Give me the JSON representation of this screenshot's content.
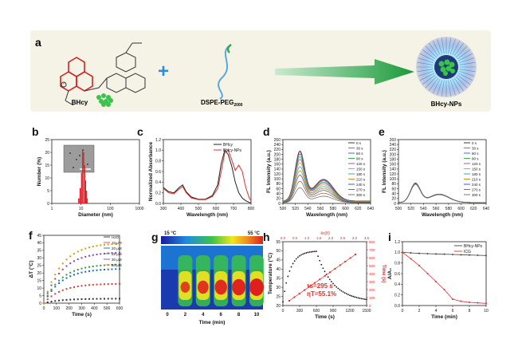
{
  "panel_a": {
    "letter": "a",
    "bhcy": "BHcy",
    "plus": "+",
    "dspe": "DSPE-PEG",
    "dspe_sub": "2000",
    "np": "BHcy-NPs"
  },
  "chart_data": [
    {
      "panel": "b",
      "type": "bar",
      "xlabel": "Diameter (nm)",
      "ylabel": "Number (%)",
      "x_scale": "log",
      "xlim": [
        1,
        1000
      ],
      "ylim": [
        0,
        25
      ],
      "yticks": [
        "0",
        "5",
        "10",
        "15",
        "20",
        "25"
      ],
      "xticks": [
        "1",
        "10",
        "100",
        "1000"
      ],
      "categories": [
        8,
        9,
        10,
        11,
        12,
        13,
        14,
        15,
        16
      ],
      "values": [
        2,
        6,
        12,
        21,
        20,
        15,
        9,
        5,
        2
      ],
      "color": "#d4141c"
    },
    {
      "panel": "c",
      "type": "line",
      "xlabel": "Wavelength (nm)",
      "ylabel": "Normalized Absorbance",
      "xlim": [
        300,
        800
      ],
      "ylim": [
        0,
        1.2
      ],
      "xticks": [
        "300",
        "400",
        "500",
        "600",
        "700",
        "800"
      ],
      "yticks": [
        "0.0",
        "0.2",
        "0.4",
        "0.6",
        "0.8",
        "1.0",
        "1.2"
      ],
      "x": [
        300,
        330,
        360,
        390,
        410,
        430,
        460,
        500,
        540,
        580,
        610,
        630,
        650,
        670,
        690,
        710,
        730,
        750,
        770,
        790,
        800
      ],
      "series": [
        {
          "name": "BHcy",
          "color": "#222222",
          "values": [
            0.3,
            0.22,
            0.2,
            0.3,
            0.35,
            0.22,
            0.12,
            0.08,
            0.08,
            0.15,
            0.35,
            0.75,
            1.0,
            0.92,
            0.7,
            0.4,
            0.2,
            0.1,
            0.05,
            0.02,
            0.01
          ]
        },
        {
          "name": "BHcy-NPs",
          "color": "#e0302a",
          "values": [
            0.28,
            0.2,
            0.18,
            0.27,
            0.32,
            0.2,
            0.1,
            0.07,
            0.07,
            0.13,
            0.28,
            0.6,
            0.95,
            1.0,
            0.82,
            0.62,
            0.72,
            0.6,
            0.3,
            0.1,
            0.05
          ]
        }
      ]
    },
    {
      "panel": "d",
      "type": "line",
      "xlabel": "Wavelength (nm)",
      "ylabel": "FL Intensity (a.u.)",
      "xlim": [
        500,
        640
      ],
      "ylim": [
        0,
        260
      ],
      "xticks": [
        "500",
        "520",
        "540",
        "560",
        "580",
        "600",
        "620",
        "640"
      ],
      "yticks": [
        "0",
        "20",
        "40",
        "60",
        "80",
        "100",
        "120",
        "140",
        "160",
        "180",
        "200",
        "220",
        "240",
        "260"
      ],
      "legend": [
        "0 s",
        "30 s",
        "60 s",
        "90 s",
        "120 s",
        "150 s",
        "180 s",
        "210 s",
        "240 s",
        "270 s",
        "300 s"
      ],
      "peaks": [
        200,
        195,
        188,
        178,
        168,
        155,
        140,
        125,
        108,
        85,
        60
      ],
      "colors": [
        "#222222",
        "#e53935",
        "#1e63d6",
        "#2e9e3c",
        "#8e44ad",
        "#c8a400",
        "#1aa0b8",
        "#d4760a",
        "#2a4da8",
        "#a0522d",
        "#666666"
      ]
    },
    {
      "panel": "e",
      "type": "line",
      "xlabel": "Wavelength (nm)",
      "ylabel": "FL Intensity (a.u.)",
      "xlim": [
        500,
        640
      ],
      "ylim": [
        0,
        260
      ],
      "xticks": [
        "500",
        "520",
        "540",
        "560",
        "580",
        "600",
        "620",
        "640"
      ],
      "yticks": [
        "0",
        "20",
        "40",
        "60",
        "80",
        "100",
        "120",
        "140",
        "160",
        "180",
        "200",
        "220",
        "240",
        "260"
      ],
      "legend": [
        "0 s",
        "30 s",
        "60 s",
        "90 s",
        "120 s",
        "150 s",
        "180 s",
        "210 s",
        "240 s",
        "270 s",
        "300 s"
      ],
      "peaks": [
        78,
        77,
        77,
        76,
        76,
        75,
        75,
        74,
        74,
        73,
        73
      ],
      "colors": [
        "#222222",
        "#e53935",
        "#1e63d6",
        "#2e9e3c",
        "#8e44ad",
        "#c8a400",
        "#1aa0b8",
        "#d4760a",
        "#2a4da8",
        "#a0522d",
        "#666666"
      ]
    },
    {
      "panel": "f",
      "type": "line",
      "xlabel": "Time (s)",
      "ylabel": "ΔT (°C)",
      "xlim": [
        0,
        600
      ],
      "ylim": [
        0,
        45
      ],
      "xticks": [
        "0",
        "100",
        "200",
        "300",
        "400",
        "500",
        "600"
      ],
      "yticks": [
        "0",
        "5",
        "10",
        "15",
        "20",
        "25",
        "30",
        "35",
        "40",
        "45"
      ],
      "series": [
        {
          "name": "H2O",
          "plateau": 3,
          "color": "#333333"
        },
        {
          "name": "10 μM",
          "plateau": 13,
          "color": "#e53935"
        },
        {
          "name": "20 μM",
          "plateau": 23,
          "color": "#1e63d6"
        },
        {
          "name": "25 μM",
          "plateau": 26,
          "color": "#2e9e3c"
        },
        {
          "name": "30 μM",
          "plateau": 34,
          "color": "#8e44ad"
        },
        {
          "name": "50 μM",
          "plateau": 40,
          "color": "#d4a000"
        }
      ]
    },
    {
      "panel": "g",
      "type": "heatmap",
      "xlabel": "Time (min)",
      "xticks": [
        "0",
        "2",
        "4",
        "6",
        "8",
        "10"
      ],
      "scale_min": "15 °C",
      "scale_max": "55 °C",
      "intensity": [
        0.0,
        0.55,
        0.7,
        0.82,
        0.92,
        1.0
      ]
    },
    {
      "panel": "h",
      "type": "scatter",
      "xlabel": "Time (s)",
      "ylabel": "Temperature (°C)",
      "y2label": "Time (s)",
      "top_label": "-ln(θ)",
      "xlim": [
        0,
        1500
      ],
      "ylim": [
        20,
        55
      ],
      "xticks": [
        "0",
        "300",
        "600",
        "900",
        "1200",
        "1500"
      ],
      "yticks": [
        "20",
        "25",
        "30",
        "35",
        "40",
        "45",
        "50",
        "55"
      ],
      "y2ticks": [
        "0",
        "100",
        "200",
        "300",
        "400",
        "500",
        "600",
        "700",
        "800"
      ],
      "top_ticks": [
        "0.0",
        "0.5",
        "1.0",
        "1.5",
        "2.0",
        "2.5",
        "3.0",
        "3.5"
      ],
      "annot1": "τs=295 s",
      "annot2": "ηT=55.1%"
    },
    {
      "panel": "i",
      "type": "line",
      "xlabel": "Time (min)",
      "ylabel": "A/A₀",
      "xlim": [
        0,
        10
      ],
      "ylim": [
        0,
        1.2
      ],
      "xticks": [
        "0",
        "2",
        "4",
        "6",
        "8",
        "10"
      ],
      "yticks": [
        "0.0",
        "0.2",
        "0.4",
        "0.6",
        "0.8",
        "1.0",
        "1.2"
      ],
      "x": [
        0,
        1,
        2,
        3,
        4,
        5,
        6,
        7,
        8,
        9,
        10
      ],
      "series": [
        {
          "name": "BHcy-NPs",
          "color": "#444444",
          "values": [
            1.0,
            0.99,
            0.98,
            0.975,
            0.97,
            0.965,
            0.96,
            0.955,
            0.95,
            0.945,
            0.94
          ]
        },
        {
          "name": "ICG",
          "color": "#e0302a",
          "values": [
            1.0,
            0.88,
            0.75,
            0.6,
            0.45,
            0.3,
            0.12,
            0.08,
            0.06,
            0.05,
            0.04
          ]
        }
      ]
    }
  ]
}
